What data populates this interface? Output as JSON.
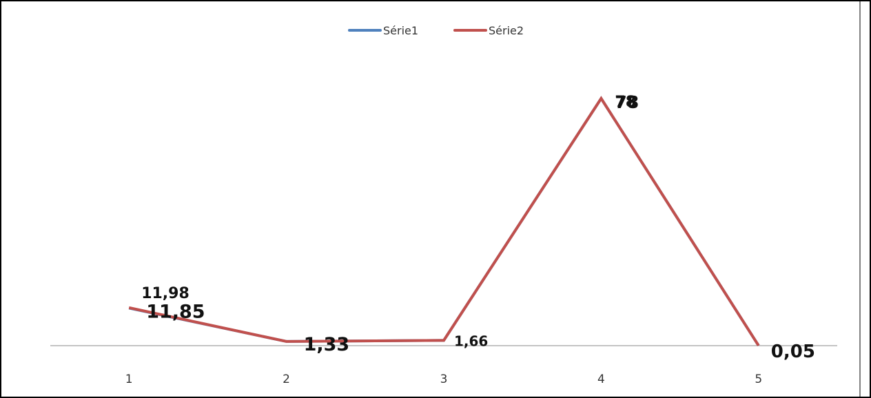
{
  "chart_data": {
    "type": "line",
    "title": "",
    "xlabel": "",
    "ylabel": "",
    "categories": [
      "1",
      "2",
      "3",
      "4",
      "5"
    ],
    "ylim": [
      0,
      78
    ],
    "grid": false,
    "legend_position": "top",
    "series": [
      {
        "name": "Série1",
        "color": "#4F81BD",
        "values": [
          11.85,
          1.33,
          1.66,
          78,
          0.05
        ],
        "labels": [
          "11,85",
          "1,33",
          "1,66",
          "78",
          "0,05"
        ]
      },
      {
        "name": "Série2",
        "color": "#C0504D",
        "values": [
          11.98,
          1.33,
          1.66,
          78,
          0.05
        ],
        "labels": [
          "11,98",
          "",
          "",
          "78",
          ""
        ]
      }
    ]
  }
}
